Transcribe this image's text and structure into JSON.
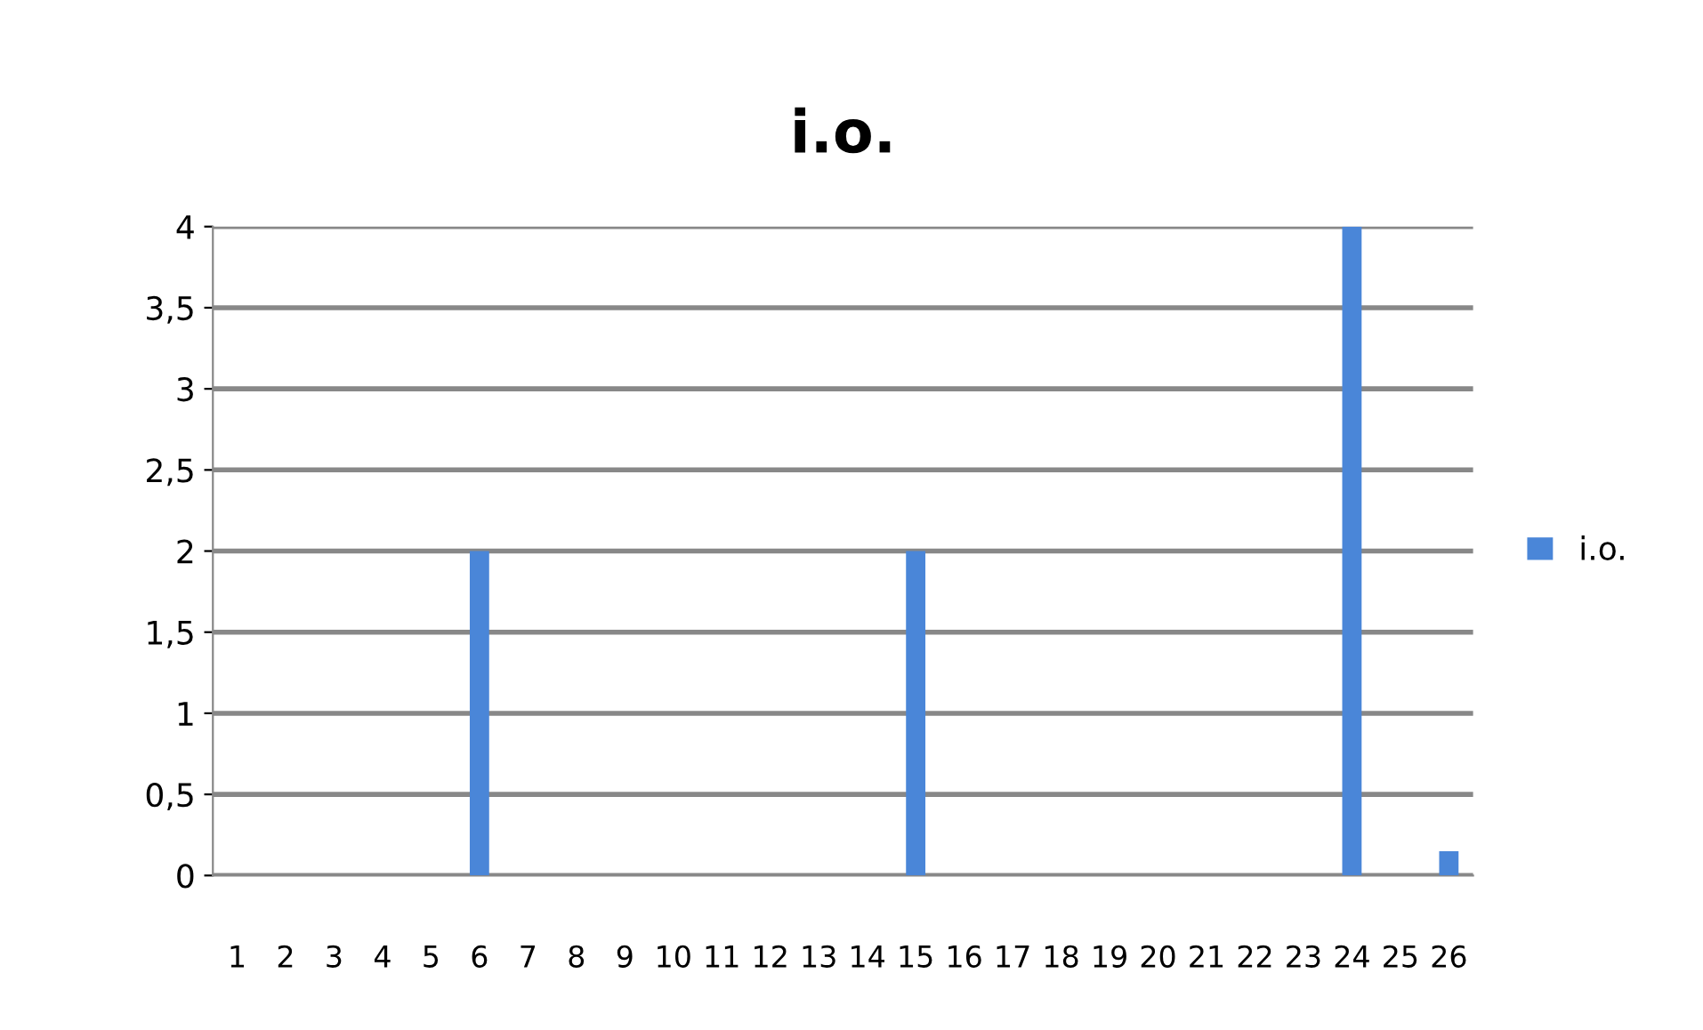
{
  "chart_data": {
    "type": "bar",
    "title": "i.o.",
    "categories": [
      "1",
      "2",
      "3",
      "4",
      "5",
      "6",
      "7",
      "8",
      "9",
      "10",
      "11",
      "12",
      "13",
      "14",
      "15",
      "16",
      "17",
      "18",
      "19",
      "20",
      "21",
      "22",
      "23",
      "24",
      "25",
      "26"
    ],
    "series": [
      {
        "name": "i.o.",
        "color": "#4a86d8",
        "values": [
          0,
          0,
          0,
          0,
          0,
          2,
          0,
          0,
          0,
          0,
          0,
          0,
          0,
          0,
          2,
          0,
          0,
          0,
          0,
          0,
          0,
          0,
          0,
          4,
          0,
          0.15
        ]
      }
    ],
    "ylim": [
      0,
      4
    ],
    "yticks": [
      0,
      {
        "value": 0.5,
        "label": "0,5"
      },
      1,
      {
        "value": 1.5,
        "label": "1,5"
      },
      2,
      {
        "value": 2.5,
        "label": "2,5"
      },
      3,
      {
        "value": 3.5,
        "label": "3,5"
      },
      4
    ],
    "grid": "y",
    "legend": "right"
  }
}
